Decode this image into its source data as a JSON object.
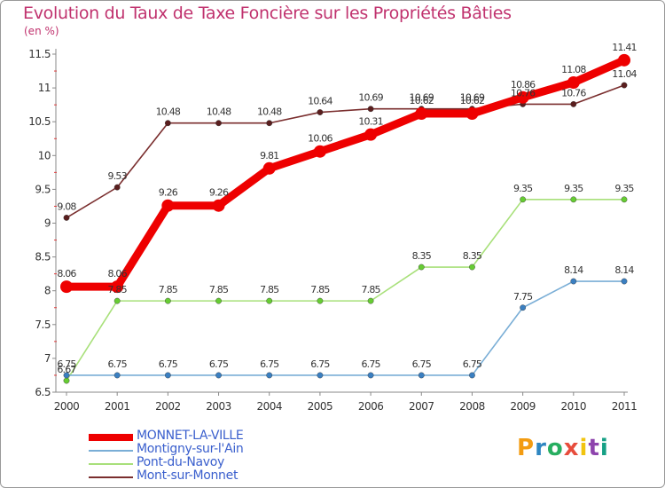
{
  "title": "Evolution du Taux de Taxe Foncière sur les Propriétés Bâties",
  "subtitle": "(en %)",
  "logo": {
    "letters": [
      "P",
      "r",
      "o",
      "x",
      "i",
      "t",
      "i"
    ],
    "colors": [
      "#f39c12",
      "#2e86c1",
      "#27ae60",
      "#e74c3c",
      "#f1c40f",
      "#8e44ad",
      "#16a085"
    ]
  },
  "chart_data": {
    "type": "line",
    "title": "Evolution du Taux de Taxe Foncière sur les Propriétés Bâties",
    "ylabel": "(en %)",
    "xlabel": "",
    "x": [
      "2000",
      "2001",
      "2002",
      "2003",
      "2004",
      "2005",
      "2006",
      "2007",
      "2008",
      "2009",
      "2010",
      "2011"
    ],
    "ylim": [
      6.5,
      11.5
    ],
    "yticks": [
      "6.5",
      "7",
      "7.5",
      "8",
      "8.5",
      "9",
      "9.5",
      "10",
      "10.5",
      "11",
      "11.5"
    ],
    "grid": false,
    "legend_position": "bottom-left",
    "series": [
      {
        "name": "Mont-sur-Monnet",
        "color": "#7a2e2e",
        "point_color": "#5a1e1e",
        "values": [
          9.08,
          9.53,
          10.48,
          10.48,
          10.48,
          10.64,
          10.69,
          10.69,
          10.69,
          10.76,
          10.76,
          11.04
        ],
        "labels": [
          "9.08",
          "9.53",
          "10.48",
          "10.48",
          "10.48",
          "10.64",
          "10.69",
          "10.69",
          "10.69",
          "10.76",
          "10.76",
          "11.04"
        ]
      },
      {
        "name": "Pont-du-Navoy",
        "color": "#a8e07a",
        "point_color": "#66cc33",
        "values": [
          6.67,
          7.85,
          7.85,
          7.85,
          7.85,
          7.85,
          7.85,
          8.35,
          8.35,
          9.35,
          9.35,
          9.35
        ],
        "labels": [
          "6.67",
          "7.85",
          "7.85",
          "7.85",
          "7.85",
          "7.85",
          "7.85",
          "8.35",
          "8.35",
          "9.35",
          "9.35",
          "9.35"
        ]
      },
      {
        "name": "Montigny-sur-l'Ain",
        "color": "#7aaed6",
        "point_color": "#3a7fc1",
        "values": [
          6.75,
          6.75,
          6.75,
          6.75,
          6.75,
          6.75,
          6.75,
          6.75,
          6.75,
          7.75,
          8.14,
          8.14
        ],
        "labels": [
          "6.75",
          "6.75",
          "6.75",
          "6.75",
          "6.75",
          "6.75",
          "6.75",
          "6.75",
          "6.75",
          "7.75",
          "8.14",
          "8.14"
        ]
      },
      {
        "name": "MONNET-LA-VILLE",
        "color": "#ee0000",
        "point_color": "#ee0000",
        "values": [
          8.06,
          8.06,
          9.26,
          9.26,
          9.81,
          10.06,
          10.31,
          10.62,
          10.62,
          10.86,
          11.08,
          11.41
        ],
        "labels": [
          "8.06",
          "8.06",
          "9.26",
          "9.26",
          "9.81",
          "10.06",
          "10.31",
          "10.62",
          "10.62",
          "10.86",
          "11.08",
          "11.41"
        ]
      }
    ],
    "legend": [
      {
        "name": "MONNET-LA-VILLE",
        "color": "#ee0000",
        "text_color": "#3a5fcd",
        "thick": true
      },
      {
        "name": "Montigny-sur-l'Ain",
        "color": "#7aaed6",
        "text_color": "#3a5fcd",
        "thick": false
      },
      {
        "name": "Pont-du-Navoy",
        "color": "#a8e07a",
        "text_color": "#3a5fcd",
        "thick": false
      },
      {
        "name": "Mont-sur-Monnet",
        "color": "#7a2e2e",
        "text_color": "#3a5fcd",
        "thick": false
      }
    ]
  }
}
